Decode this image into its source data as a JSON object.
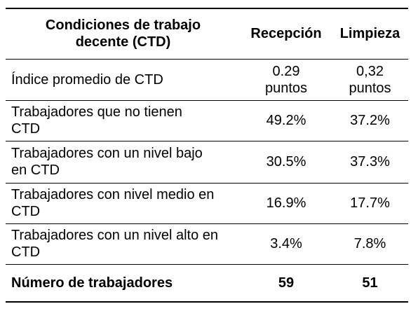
{
  "header": {
    "col1": "Condiciones de trabajo decente (CTD)",
    "col2": "Recepción",
    "col3": "Limpieza"
  },
  "rows": [
    {
      "label": "Índice promedio de CTD",
      "recepcion": "0.29 puntos",
      "limpieza": "0,32 puntos"
    },
    {
      "label": "Trabajadores que no tienen CTD",
      "recepcion": "49.2%",
      "limpieza": "37.2%"
    },
    {
      "label": "Trabajadores con un nivel bajo en CTD",
      "recepcion": "30.5%",
      "limpieza": "37.3%"
    },
    {
      "label": "Trabajadores con nivel medio en CTD",
      "recepcion": "16.9%",
      "limpieza": "17.7%"
    },
    {
      "label": "Trabajadores con un nivel alto en CTD",
      "recepcion": "3.4%",
      "limpieza": "7.8%"
    }
  ],
  "total": {
    "label": "Número de trabajadores",
    "recepcion": "59",
    "limpieza": "51"
  }
}
